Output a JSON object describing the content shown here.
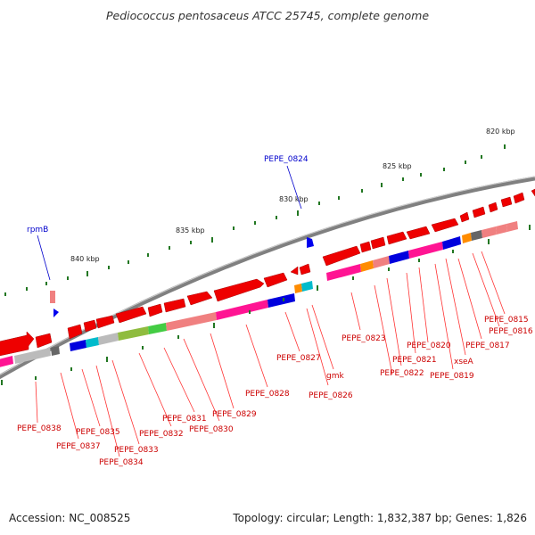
{
  "title": "Pediococcus pentosaceus ATCC 25745, complete genome",
  "accession": "Accession: NC_008525",
  "summary": "Topology: circular; Length: 1,832,387 bp; Genes: 1,826",
  "colors": {
    "backbone": "#777777",
    "gene": "#ee0000",
    "rna_gene": "#0000ee",
    "tick": "#227722",
    "label_red": "#cc0000",
    "label_blue": "#0000cc"
  },
  "kbp_labels": [
    "820 kbp",
    "825 kbp",
    "830 kbp",
    "835 kbp",
    "840 kbp"
  ],
  "gene_labels": [
    "PEPE_0815",
    "PEPE_0816",
    "PEPE_0817",
    "xseA",
    "PEPE_0819",
    "PEPE_0820",
    "PEPE_0821",
    "PEPE_0822",
    "PEPE_0823",
    "gmk",
    "PEPE_0826",
    "PEPE_0827",
    "PEPE_0828",
    "PEPE_0829",
    "PEPE_0830",
    "PEPE_0831",
    "PEPE_0832",
    "PEPE_0833",
    "PEPE_0834",
    "PEPE_0835",
    "PEPE_0837",
    "PEPE_0838"
  ],
  "rna_labels": [
    "PEPE_0824",
    "rpmB"
  ]
}
